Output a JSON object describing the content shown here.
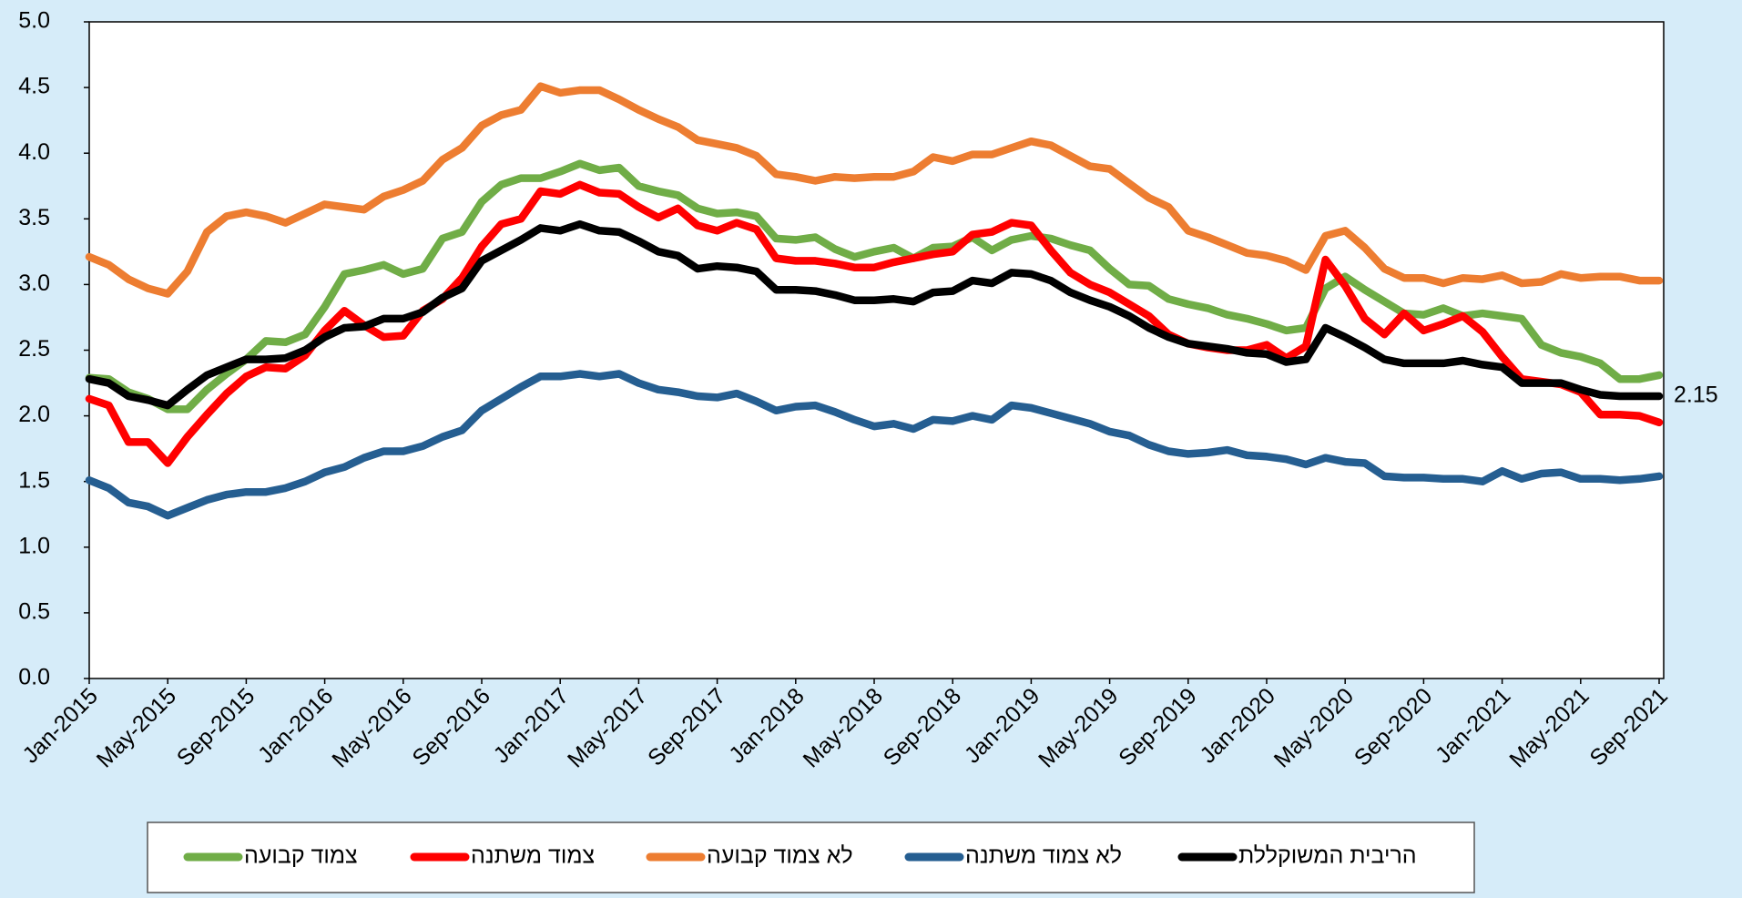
{
  "chart_data": {
    "type": "line",
    "categories": [
      "Jan-2015",
      null,
      null,
      null,
      "May-2015",
      null,
      null,
      null,
      "Sep-2015",
      null,
      null,
      null,
      "Jan-2016",
      null,
      null,
      null,
      "May-2016",
      null,
      null,
      null,
      "Sep-2016",
      null,
      null,
      null,
      "Jan-2017",
      null,
      null,
      null,
      "May-2017",
      null,
      null,
      null,
      "Sep-2017",
      null,
      null,
      null,
      "Jan-2018",
      null,
      null,
      null,
      "May-2018",
      null,
      null,
      null,
      "Sep-2018",
      null,
      null,
      null,
      "Jan-2019",
      null,
      null,
      null,
      "May-2019",
      null,
      null,
      null,
      "Sep-2019",
      null,
      null,
      null,
      "Jan-2020",
      null,
      null,
      null,
      "May-2020",
      null,
      null,
      null,
      "Sep-2020",
      null,
      null,
      null,
      "Jan-2021",
      null,
      null,
      null,
      "May-2021",
      null,
      null,
      null,
      "Sep-2021"
    ],
    "series": [
      {
        "name": "צמוד קבועה",
        "color": "#70ad47",
        "values": [
          2.29,
          2.28,
          2.18,
          2.13,
          2.05,
          2.05,
          2.2,
          2.32,
          2.43,
          2.57,
          2.56,
          2.62,
          2.83,
          3.08,
          3.11,
          3.15,
          3.08,
          3.12,
          3.35,
          3.4,
          3.63,
          3.76,
          3.81,
          3.81,
          3.86,
          3.92,
          3.87,
          3.89,
          3.75,
          3.71,
          3.68,
          3.58,
          3.54,
          3.55,
          3.52,
          3.35,
          3.34,
          3.36,
          3.27,
          3.21,
          3.25,
          3.28,
          3.2,
          3.28,
          3.29,
          3.36,
          3.26,
          3.34,
          3.37,
          3.35,
          3.3,
          3.26,
          3.12,
          3.0,
          2.99,
          2.89,
          2.85,
          2.82,
          2.77,
          2.74,
          2.7,
          2.65,
          2.67,
          2.97,
          3.06,
          2.96,
          2.87,
          2.78,
          2.77,
          2.82,
          2.76,
          2.78,
          2.76,
          2.74,
          2.54,
          2.48,
          2.45,
          2.4,
          2.28,
          2.28,
          2.31
        ]
      },
      {
        "name": "צמוד משתנה",
        "color": "#ff0000",
        "values": [
          2.13,
          2.08,
          1.8,
          1.8,
          1.64,
          1.84,
          2.01,
          2.17,
          2.3,
          2.37,
          2.36,
          2.46,
          2.65,
          2.8,
          2.69,
          2.6,
          2.61,
          2.8,
          2.89,
          3.05,
          3.29,
          3.46,
          3.5,
          3.71,
          3.69,
          3.76,
          3.7,
          3.69,
          3.59,
          3.51,
          3.58,
          3.45,
          3.41,
          3.47,
          3.42,
          3.2,
          3.18,
          3.18,
          3.16,
          3.13,
          3.13,
          3.17,
          3.2,
          3.23,
          3.25,
          3.38,
          3.4,
          3.47,
          3.45,
          3.26,
          3.09,
          3.0,
          2.94,
          2.85,
          2.76,
          2.62,
          2.55,
          2.52,
          2.5,
          2.5,
          2.54,
          2.44,
          2.53,
          3.19,
          2.99,
          2.74,
          2.62,
          2.78,
          2.65,
          2.7,
          2.76,
          2.64,
          2.45,
          2.28,
          2.26,
          2.24,
          2.18,
          2.01,
          2.01,
          2.0,
          1.95
        ]
      },
      {
        "name": "לא צמוד קבועה",
        "color": "#ed7d31",
        "values": [
          3.21,
          3.15,
          3.04,
          2.97,
          2.93,
          3.1,
          3.4,
          3.52,
          3.55,
          3.52,
          3.47,
          3.54,
          3.61,
          3.59,
          3.57,
          3.67,
          3.72,
          3.79,
          3.95,
          4.04,
          4.21,
          4.29,
          4.33,
          4.51,
          4.46,
          4.48,
          4.48,
          4.41,
          4.33,
          4.26,
          4.2,
          4.1,
          4.07,
          4.04,
          3.98,
          3.84,
          3.82,
          3.79,
          3.82,
          3.81,
          3.82,
          3.82,
          3.86,
          3.97,
          3.94,
          3.99,
          3.99,
          4.04,
          4.09,
          4.06,
          3.98,
          3.9,
          3.88,
          3.77,
          3.66,
          3.59,
          3.41,
          3.36,
          3.3,
          3.24,
          3.22,
          3.18,
          3.11,
          3.37,
          3.41,
          3.28,
          3.12,
          3.05,
          3.05,
          3.01,
          3.05,
          3.04,
          3.07,
          3.01,
          3.02,
          3.08,
          3.05,
          3.06,
          3.06,
          3.03,
          3.03
        ]
      },
      {
        "name": "לא צמוד משתנה",
        "color": "#255e91",
        "values": [
          1.51,
          1.45,
          1.34,
          1.31,
          1.24,
          1.3,
          1.36,
          1.4,
          1.42,
          1.42,
          1.45,
          1.5,
          1.57,
          1.61,
          1.68,
          1.73,
          1.73,
          1.77,
          1.84,
          1.89,
          2.04,
          2.13,
          2.22,
          2.3,
          2.3,
          2.32,
          2.3,
          2.32,
          2.25,
          2.2,
          2.18,
          2.15,
          2.14,
          2.17,
          2.11,
          2.04,
          2.07,
          2.08,
          2.03,
          1.97,
          1.92,
          1.94,
          1.9,
          1.97,
          1.96,
          2.0,
          1.97,
          2.08,
          2.06,
          2.02,
          1.98,
          1.94,
          1.88,
          1.85,
          1.78,
          1.73,
          1.71,
          1.72,
          1.74,
          1.7,
          1.69,
          1.67,
          1.63,
          1.68,
          1.65,
          1.64,
          1.54,
          1.53,
          1.53,
          1.52,
          1.52,
          1.5,
          1.58,
          1.52,
          1.56,
          1.57,
          1.52,
          1.52,
          1.51,
          1.52,
          1.54
        ]
      },
      {
        "name": "הריבית המשוקללת",
        "color": "#000000",
        "values": [
          2.28,
          2.25,
          2.15,
          2.12,
          2.08,
          2.2,
          2.31,
          2.37,
          2.43,
          2.43,
          2.44,
          2.5,
          2.6,
          2.67,
          2.68,
          2.74,
          2.74,
          2.79,
          2.9,
          2.97,
          3.18,
          3.26,
          3.34,
          3.43,
          3.41,
          3.46,
          3.41,
          3.4,
          3.33,
          3.25,
          3.22,
          3.12,
          3.14,
          3.13,
          3.1,
          2.96,
          2.96,
          2.95,
          2.92,
          2.88,
          2.88,
          2.89,
          2.87,
          2.94,
          2.95,
          3.03,
          3.01,
          3.09,
          3.08,
          3.03,
          2.94,
          2.88,
          2.83,
          2.76,
          2.67,
          2.6,
          2.55,
          2.53,
          2.51,
          2.48,
          2.47,
          2.41,
          2.43,
          2.67,
          2.6,
          2.52,
          2.43,
          2.4,
          2.4,
          2.4,
          2.42,
          2.39,
          2.37,
          2.25,
          2.25,
          2.25,
          2.2,
          2.16,
          2.15,
          2.15,
          2.15
        ]
      }
    ],
    "ylim": [
      0,
      5
    ],
    "yticks": [
      {
        "value": 0,
        "label": "0.0"
      },
      0.5,
      {
        "value": 1,
        "label": "1.0"
      },
      1.5,
      {
        "value": 2,
        "label": "2.0"
      },
      2.5,
      {
        "value": 3,
        "label": "3.0"
      },
      3.5,
      {
        "value": 4,
        "label": "4.0"
      },
      4.5,
      {
        "value": 5,
        "label": "5.0"
      }
    ],
    "grid": false,
    "legend": "bottom"
  }
}
